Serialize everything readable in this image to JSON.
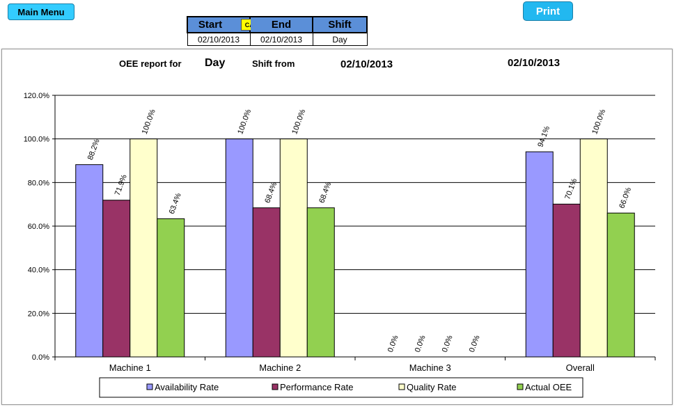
{
  "toolbar": {
    "main_menu_label": "Main Menu",
    "print_label": "Print"
  },
  "selector": {
    "start_label": "Start",
    "cal_label": "CAL",
    "end_label": "End",
    "shift_label": "Shift",
    "start_value": "02/10/2013",
    "end_value": "02/10/2013",
    "shift_value": "Day"
  },
  "report": {
    "prefix": "OEE report for",
    "shift": "Day",
    "shift_from": "Shift from",
    "from_date": "02/10/2013",
    "to_date": "02/10/2013"
  },
  "chart_data": {
    "type": "bar",
    "categories": [
      "Machine 1",
      "Machine 2",
      "Machine 3",
      "Overall"
    ],
    "ylim": [
      0,
      120
    ],
    "yticks": [
      0,
      20,
      40,
      60,
      80,
      100,
      120
    ],
    "ytick_labels": [
      "0.0%",
      "20.0%",
      "40.0%",
      "60.0%",
      "80.0%",
      "100.0%",
      "120.0%"
    ],
    "grid": true,
    "legend_position": "bottom",
    "series": [
      {
        "name": "Availability Rate",
        "color": "#9999ff",
        "values": [
          88.2,
          100.0,
          0.0,
          94.1
        ],
        "labels": [
          "88.2%",
          "100.0%",
          "0.0%",
          "94.1%"
        ]
      },
      {
        "name": "Performance Rate",
        "color": "#993366",
        "values": [
          71.9,
          68.4,
          0.0,
          70.1
        ],
        "labels": [
          "71.9%",
          "68.4%",
          "0.0%",
          "70.1%"
        ]
      },
      {
        "name": "Quality Rate",
        "color": "#ffffcc",
        "values": [
          100.0,
          100.0,
          0.0,
          100.0
        ],
        "labels": [
          "100.0%",
          "100.0%",
          "0.0%",
          "100.0%"
        ]
      },
      {
        "name": "Actual OEE",
        "color": "#92d050",
        "values": [
          63.4,
          68.4,
          0.0,
          66.0
        ],
        "labels": [
          "63.4%",
          "68.4%",
          "0.0%",
          "66.0%"
        ]
      }
    ]
  }
}
